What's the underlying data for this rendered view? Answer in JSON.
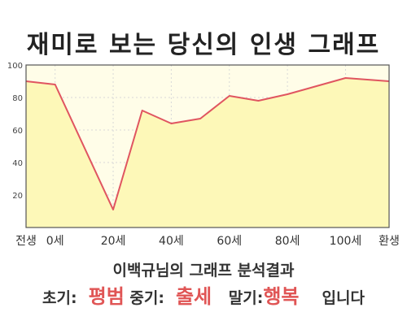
{
  "title": "재미로 보는 당신의 인생 그래프",
  "result": {
    "line1": "이백규님의 그래프 분석결과",
    "early_label": "초기:",
    "early_value": "평범",
    "mid_label": "중기:",
    "mid_value": "출세",
    "late_label": "말기:",
    "late_value": "행복",
    "ending": "입니다"
  },
  "colors": {
    "plot_fill": "#fffde8",
    "area_fill": "#fdf8b8",
    "line": "#e05560",
    "highlight": "#e05555"
  },
  "chart_data": {
    "type": "area",
    "x_ticks": [
      {
        "x": -10,
        "label": "전생"
      },
      {
        "x": 0,
        "label": "0세"
      },
      {
        "x": 20,
        "label": "20세"
      },
      {
        "x": 40,
        "label": "40세"
      },
      {
        "x": 60,
        "label": "60세"
      },
      {
        "x": 80,
        "label": "80세"
      },
      {
        "x": 100,
        "label": "100세"
      },
      {
        "x": 115,
        "label": "환생"
      }
    ],
    "xlim": [
      -10,
      115
    ],
    "ylim": [
      0,
      100
    ],
    "y_ticks": [
      20,
      40,
      60,
      80,
      100
    ],
    "grid": true,
    "series": [
      {
        "x": [
          -10,
          0,
          20,
          30,
          40,
          50,
          60,
          70,
          80,
          90,
          100,
          115
        ],
        "values": [
          90,
          88,
          11,
          72,
          64,
          67,
          81,
          78,
          82,
          87,
          92,
          90
        ]
      }
    ]
  }
}
